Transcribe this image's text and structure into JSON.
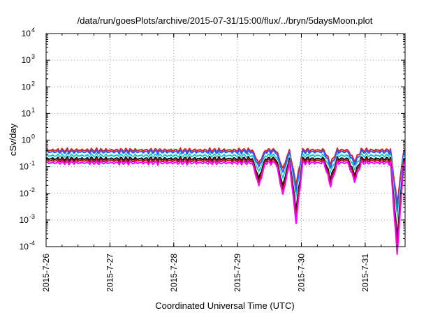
{
  "chart_data": {
    "type": "line",
    "title": "/data/run/goesPlots/archive/2015-07-31/15:00/flux/../bryn/5daysMoon.plot",
    "xlabel": "Coordinated Universal Time (UTC)",
    "ylabel": "cSv/day",
    "yscale": "log",
    "ylim": [
      0.0001,
      10000
    ],
    "xlim": [
      "2015-07-26T00:00",
      "2015-07-31T15:00"
    ],
    "grid": true,
    "y_tick_labels": [
      {
        "base": "10",
        "exp": "-4",
        "value": 0.0001
      },
      {
        "base": "10",
        "exp": "-3",
        "value": 0.001
      },
      {
        "base": "10",
        "exp": "-2",
        "value": 0.01
      },
      {
        "base": "10",
        "exp": "-1",
        "value": 0.1
      },
      {
        "base": "10",
        "exp": "0",
        "value": 1
      },
      {
        "base": "10",
        "exp": "1",
        "value": 10
      },
      {
        "base": "10",
        "exp": "2",
        "value": 100
      },
      {
        "base": "10",
        "exp": "3",
        "value": 1000
      },
      {
        "base": "10",
        "exp": "4",
        "value": 10000
      }
    ],
    "x_tick_labels": [
      "2015-7-26",
      "2015-7-27",
      "2015-7-28",
      "2015-7-29",
      "2015-7-30",
      "2015-7-31"
    ],
    "dips": [
      {
        "x": "2015-07-29T08:00",
        "depth": 0.5
      },
      {
        "x": "2015-07-29T17:00",
        "depth": 0.7
      },
      {
        "x": "2015-07-29T22:00",
        "depth": 1.3
      },
      {
        "x": "2015-07-30T11:00",
        "depth": 0.5
      },
      {
        "x": "2015-07-30T20:00",
        "depth": 0.4
      },
      {
        "x": "2015-07-31T12:00",
        "depth": 2.0
      }
    ],
    "series": [
      {
        "color": "#dd2222",
        "base": 0.42
      },
      {
        "color": "#3355ff",
        "base": 0.36
      },
      {
        "color": "#00cccc",
        "base": 0.26
      },
      {
        "color": "#ffffff",
        "base": 0.22
      },
      {
        "color": "#111111",
        "base": 0.2
      },
      {
        "color": "#aa1111",
        "base": 0.17
      },
      {
        "color": "#ff00ff",
        "base": 0.14
      }
    ]
  }
}
